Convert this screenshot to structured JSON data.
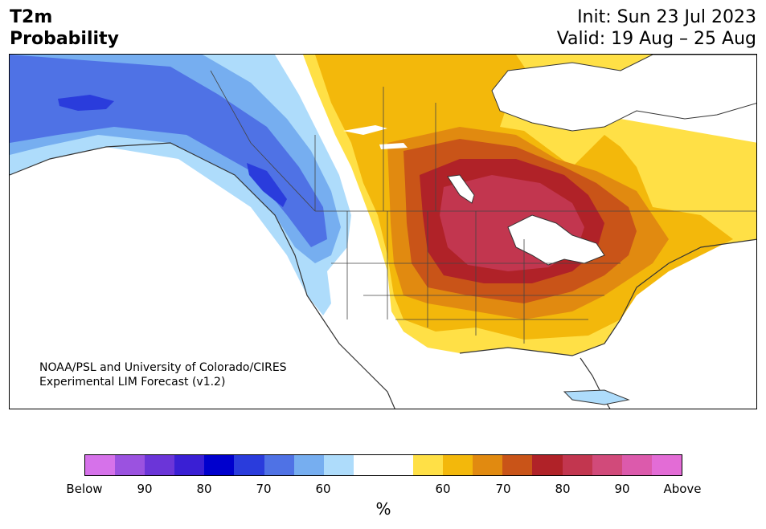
{
  "header": {
    "title_line1": "T2m",
    "title_line2": "Probability",
    "init": "Init: Sun 23 Jul 2023",
    "valid": "Valid: 19 Aug – 25 Aug"
  },
  "credit": {
    "line1": "NOAA/PSL and University of Colorado/CIRES",
    "line2": "Experimental LIM Forecast (v1.2)"
  },
  "colorbar": {
    "colors": [
      "#d672ea",
      "#9b52e0",
      "#6b35d8",
      "#3a1fd4",
      "#0000cd",
      "#2a3cdc",
      "#4f72e5",
      "#76aef0",
      "#aedcfb",
      "#ffffff",
      "#ffffff",
      "#ffe046",
      "#f3b80b",
      "#e18a10",
      "#c95418",
      "#b02228",
      "#c2364f",
      "#d14a7a",
      "#dc5aac",
      "#e36cd6"
    ],
    "tick_labels": [
      "Below",
      "90",
      "80",
      "70",
      "60",
      "60",
      "70",
      "80",
      "90",
      "Above"
    ],
    "unit": "%"
  },
  "legend_categories": {
    "below_colors": [
      "#d672ea",
      "#9b52e0",
      "#6b35d8",
      "#3a1fd4",
      "#0000cd",
      "#2a3cdc",
      "#4f72e5",
      "#76aef0",
      "#aedcfb"
    ],
    "neutral_color": "#ffffff",
    "above_colors": [
      "#ffe046",
      "#f3b80b",
      "#e18a10",
      "#c95418",
      "#b02228",
      "#c2364f",
      "#d14a7a",
      "#dc5aac",
      "#e36cd6"
    ]
  }
}
